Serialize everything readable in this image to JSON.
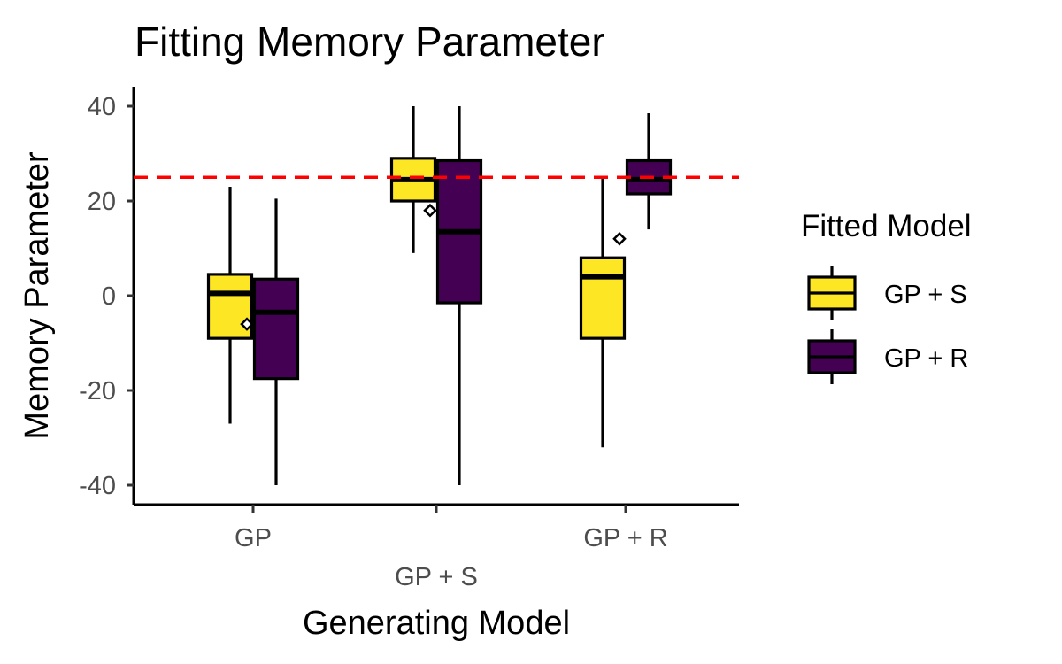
{
  "chart_data": {
    "type": "box",
    "title": "Fitting Memory Parameter",
    "xlabel": "Generating Model",
    "ylabel": "Memory Parameter",
    "ylim": [
      -42,
      44
    ],
    "y_ticks": [
      -40,
      -20,
      0,
      20,
      40
    ],
    "y_tick_labels": [
      "-40",
      "-20",
      "0",
      "20",
      "40"
    ],
    "categories": [
      "GP",
      "GP + S",
      "GP + R"
    ],
    "reference_line": {
      "y": 25,
      "color": "#ff0000",
      "style": "dashed"
    },
    "legend": {
      "title": "Fitted Model",
      "position": "right"
    },
    "series": [
      {
        "name": "GP + S",
        "color": "#fde725",
        "boxes": [
          {
            "category": "GP",
            "min": -27,
            "q1": -9,
            "median": 0.5,
            "q3": 4.5,
            "max": 23,
            "mean": -6
          },
          {
            "category": "GP + S",
            "min": 9,
            "q1": 20,
            "median": 24.5,
            "q3": 29,
            "max": 40,
            "mean": 18
          },
          {
            "category": "GP + R",
            "min": -32,
            "q1": -9,
            "median": 4,
            "q3": 8,
            "max": 25,
            "mean": 12
          }
        ]
      },
      {
        "name": "GP + R",
        "color": "#440154",
        "boxes": [
          {
            "category": "GP",
            "min": -40,
            "q1": -17.5,
            "median": -3.5,
            "q3": 3.5,
            "max": 20.5,
            "mean": -6
          },
          {
            "category": "GP + S",
            "min": -40,
            "q1": -1.5,
            "median": 13.5,
            "q3": 28.5,
            "max": 40,
            "mean": 18
          },
          {
            "category": "GP + R",
            "min": 14,
            "q1": 21.5,
            "median": 24.5,
            "q3": 28.5,
            "max": 38.5,
            "mean": 12
          }
        ]
      }
    ]
  }
}
